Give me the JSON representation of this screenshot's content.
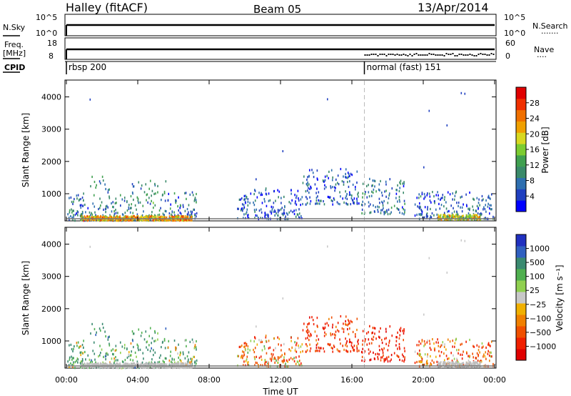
{
  "header": {
    "radar": "Halley (fitACF)",
    "beam": "Beam 05",
    "date": "13/Apr/2014"
  },
  "strip_labels": {
    "nsky": "N.Sky",
    "nsearch": "N.Search",
    "freq": "Freq.",
    "freq_unit": "[MHz]",
    "nave": "Nave",
    "cpid": "CPID",
    "noise_left_ticks": [
      "10^5",
      "10^0"
    ],
    "noise_right_ticks": [
      "10^5",
      "10^0"
    ],
    "freq_left_ticks": [
      "18",
      "8"
    ],
    "nave_right_ticks": [
      "60",
      "0"
    ]
  },
  "cpid_segments": [
    {
      "label": "rbsp 200",
      "start_hour": 0
    },
    {
      "label": "normal (fast) 151",
      "start_hour": 16.7
    }
  ],
  "axes": {
    "ylabel": "Slant Range [km]",
    "yticks": [
      "4000",
      "3000",
      "2000",
      "1000"
    ],
    "xlabel": "Time UT",
    "xticks": [
      "00:00",
      "04:00",
      "08:00",
      "12:00",
      "16:00",
      "20:00",
      "00:00"
    ]
  },
  "colorbars": {
    "power": {
      "label": "Power [dB]",
      "ticks": [
        "28",
        "24",
        "20",
        "16",
        "12",
        "8",
        "4"
      ],
      "colors": [
        "#0000ff",
        "#2040c0",
        "#2e6fb0",
        "#3a8a6a",
        "#40a050",
        "#7ccc30",
        "#d8d820",
        "#f0a000",
        "#f07000",
        "#f03000",
        "#e00000"
      ]
    },
    "velocity": {
      "label": "Velocity [m s⁻¹]",
      "ticks": [
        "1000",
        "500",
        "100",
        "25",
        "−25",
        "−100",
        "−500",
        "−1000"
      ],
      "colors": [
        "#2030c0",
        "#3060c0",
        "#3a8a70",
        "#50b050",
        "#90d050",
        "#c8c8c8",
        "#f0b000",
        "#f08000",
        "#f05000",
        "#f02000",
        "#e00000"
      ]
    }
  },
  "chart_data": {
    "type": "heatmap",
    "title": "Halley (fitACF) Beam 05 13/Apr/2014",
    "xlabel": "Time UT",
    "ylabel": "Slant Range [km]",
    "xlim_hours": [
      0,
      24
    ],
    "ylim_km": [
      180,
      4500
    ],
    "marker_hour": 16.7,
    "scatter_regions": [
      {
        "t0": 0.0,
        "t1": 1.3,
        "r0": 200,
        "r1": 1050,
        "power": 8,
        "velocity": 200
      },
      {
        "t0": 1.3,
        "t1": 2.4,
        "r0": 200,
        "r1": 1600,
        "power": 10,
        "velocity": 300
      },
      {
        "t0": 2.4,
        "t1": 3.6,
        "r0": 200,
        "r1": 1000,
        "power": 9,
        "velocity": 150
      },
      {
        "t0": 3.6,
        "t1": 5.6,
        "r0": 200,
        "r1": 1500,
        "power": 10,
        "velocity": 300
      },
      {
        "t0": 5.6,
        "t1": 7.3,
        "r0": 250,
        "r1": 1100,
        "power": 8,
        "velocity": 150
      },
      {
        "t0": 9.5,
        "t1": 13.2,
        "r0": 250,
        "r1": 1200,
        "power": 6,
        "velocity": -100
      },
      {
        "t0": 13.2,
        "t1": 16.4,
        "r0": 700,
        "r1": 1800,
        "power": 6,
        "velocity": -300
      },
      {
        "t0": 16.5,
        "t1": 19.0,
        "r0": 400,
        "r1": 1500,
        "power": 8,
        "velocity": -400
      },
      {
        "t0": 19.5,
        "t1": 23.9,
        "r0": 250,
        "r1": 1100,
        "power": 7,
        "velocity": -150
      }
    ],
    "ground_scatter_bands": [
      {
        "t0": 0.8,
        "t1": 7.0,
        "r0": 200,
        "r1": 340,
        "power": 22
      },
      {
        "t0": 20.8,
        "t1": 23.2,
        "r0": 230,
        "r1": 380,
        "power": 18
      }
    ]
  }
}
